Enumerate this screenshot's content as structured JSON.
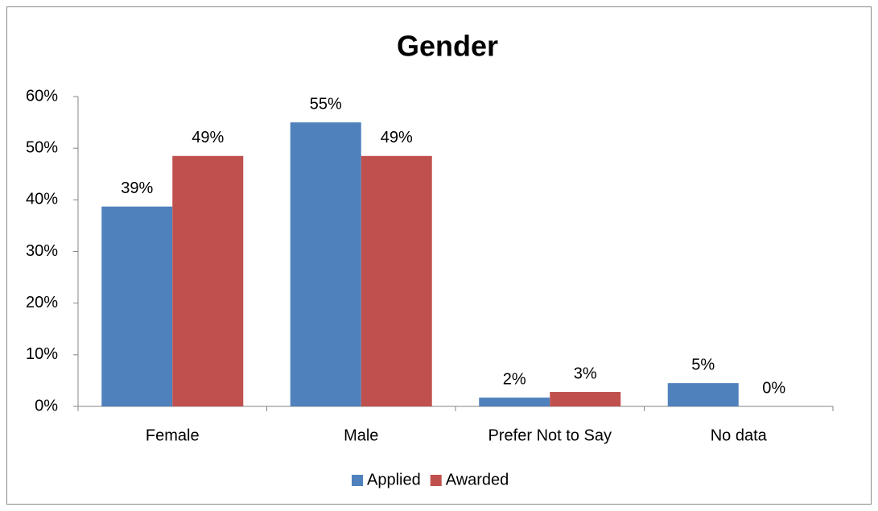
{
  "chart_data": {
    "type": "bar",
    "title": "Gender",
    "categories": [
      "Female",
      "Male",
      "Prefer Not to Say",
      "No data"
    ],
    "series": [
      {
        "name": "Applied",
        "color": "#4f81bd",
        "values": [
          38.7,
          55,
          1.7,
          4.5
        ],
        "value_labels": [
          "39%",
          "55%",
          "2%",
          "5%"
        ]
      },
      {
        "name": "Awarded",
        "color": "#c0504d",
        "values": [
          48.5,
          48.5,
          2.8,
          0
        ],
        "value_labels": [
          "49%",
          "49%",
          "3%",
          "0%"
        ]
      }
    ],
    "ylim": [
      0,
      60
    ],
    "yticks": [
      {
        "value": 0,
        "label": "0%"
      },
      {
        "value": 10,
        "label": "10%"
      },
      {
        "value": 20,
        "label": "20%"
      },
      {
        "value": 30,
        "label": "30%"
      },
      {
        "value": 40,
        "label": "40%"
      },
      {
        "value": 50,
        "label": "50%"
      },
      {
        "value": 60,
        "label": "60%"
      }
    ],
    "grid": false,
    "legend": "bottom"
  }
}
